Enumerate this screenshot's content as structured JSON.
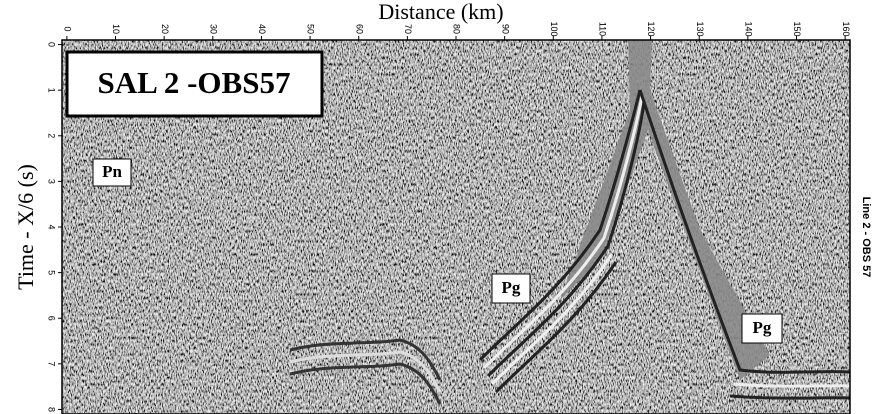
{
  "chart_data": {
    "type": "seismic",
    "xlabel": "Distance (km)",
    "ylabel": "Time - X/6 (s)",
    "xlim": [
      -1,
      161
    ],
    "xticks": [
      0,
      10,
      20,
      30,
      40,
      50,
      60,
      70,
      80,
      90,
      100,
      110,
      120,
      130,
      140,
      150,
      160
    ],
    "ylim": [
      -0.1,
      8.1
    ],
    "yticks": [
      0,
      1,
      2,
      3,
      4,
      5,
      6,
      7,
      8
    ],
    "annotations": [
      "SAL 2 -OBS57",
      "Pn",
      "Pg",
      "Pg",
      "Line 2 - OBS 57"
    ]
  }
}
